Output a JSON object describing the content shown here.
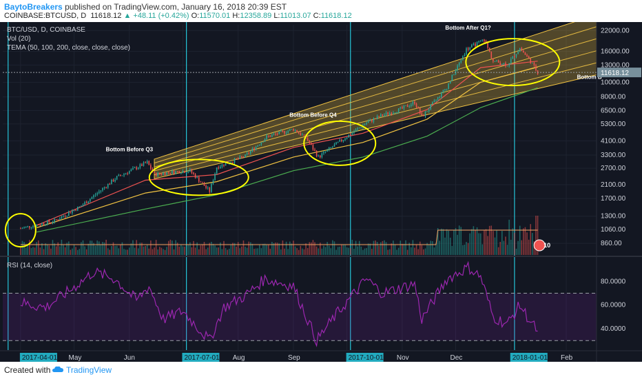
{
  "header": {
    "author": "BaytoBreakers",
    "published": "published on TradingView.com, January 16, 2018 20:39 EST",
    "symbol": "COINBASE:BTCUSD, D",
    "last": "11618.12",
    "change": "▲ +48.11 (+0.42%)",
    "o_label": "O:",
    "o_value": "11570.01",
    "h_label": "H:",
    "h_value": "12358.89",
    "l_label": "L:",
    "l_value": "11013.07",
    "c_label": "C:",
    "c_value": "11618.12"
  },
  "legend": {
    "line1": "BTC/USD, D, COINBASE",
    "line2": "Vol (20)",
    "line3": "TEMA (50, 100, 200, close, close, close)",
    "rsi": "RSI (14, close)"
  },
  "footer": {
    "created": "Created with",
    "brand": "TradingView"
  },
  "colors": {
    "background": "#131722",
    "up": "#26a69a",
    "down": "#ef5350",
    "channel_fill": "#f4c542",
    "annotation": "#ffff00",
    "tema50": "#ef5350",
    "tema100": "#f4c542",
    "tema200": "#4caf50",
    "rsi_line": "#9c27b0",
    "vline": "#26c6da",
    "price_badge": "#78909c"
  },
  "chart_data": {
    "type": "candlestick",
    "price_scale": "log",
    "ylim": [
      720,
      24000
    ],
    "y_ticks": [
      "22000.00",
      "16000.00",
      "13000.00",
      "10000.00",
      "8000.00",
      "6500.00",
      "5300.00",
      "4100.00",
      "3300.00",
      "2700.00",
      "2100.00",
      "1700.00",
      "1300.00",
      "1060.00",
      "860.00"
    ],
    "x_ticks": [
      "2017-04-01",
      "May",
      "Jun",
      "2017-07-01",
      "Aug",
      "Sep",
      "2017-10-01",
      "Nov",
      "Dec",
      "2018-01-01",
      "Feb"
    ],
    "x_range": [
      "2017-03-22",
      "2018-02-18"
    ],
    "current_price_label": "11618.12",
    "volume_badge": "10",
    "close_path": [
      {
        "date": "2017-04-01",
        "close": 1080
      },
      {
        "date": "2017-04-20",
        "close": 1210
      },
      {
        "date": "2017-05-05",
        "close": 1520
      },
      {
        "date": "2017-05-25",
        "close": 2350
      },
      {
        "date": "2017-06-11",
        "close": 2950
      },
      {
        "date": "2017-06-15",
        "close": 2450
      },
      {
        "date": "2017-06-25",
        "close": 2550
      },
      {
        "date": "2017-07-05",
        "close": 2600
      },
      {
        "date": "2017-07-16",
        "close": 1900
      },
      {
        "date": "2017-07-20",
        "close": 2750
      },
      {
        "date": "2017-08-05",
        "close": 3250
      },
      {
        "date": "2017-08-17",
        "close": 4350
      },
      {
        "date": "2017-09-01",
        "close": 4900
      },
      {
        "date": "2017-09-08",
        "close": 4300
      },
      {
        "date": "2017-09-15",
        "close": 3200
      },
      {
        "date": "2017-09-25",
        "close": 3900
      },
      {
        "date": "2017-10-12",
        "close": 5400
      },
      {
        "date": "2017-10-20",
        "close": 6000
      },
      {
        "date": "2017-11-01",
        "close": 6700
      },
      {
        "date": "2017-11-08",
        "close": 7400
      },
      {
        "date": "2017-11-12",
        "close": 5900
      },
      {
        "date": "2017-11-26",
        "close": 9300
      },
      {
        "date": "2017-12-07",
        "close": 16500
      },
      {
        "date": "2017-12-17",
        "close": 19200
      },
      {
        "date": "2017-12-22",
        "close": 13800
      },
      {
        "date": "2017-12-30",
        "close": 13100
      },
      {
        "date": "2018-01-06",
        "close": 16800
      },
      {
        "date": "2018-01-12",
        "close": 13800
      },
      {
        "date": "2018-01-16",
        "close": 11618
      }
    ],
    "tema": [
      {
        "name": "TEMA 50",
        "points": [
          {
            "date": "2017-04-10",
            "value": 1130
          },
          {
            "date": "2017-06-10",
            "value": 2250
          },
          {
            "date": "2017-07-20",
            "value": 2450
          },
          {
            "date": "2017-09-01",
            "value": 3700
          },
          {
            "date": "2017-10-10",
            "value": 4600
          },
          {
            "date": "2017-11-15",
            "value": 6600
          },
          {
            "date": "2017-12-15",
            "value": 12500
          },
          {
            "date": "2018-01-16",
            "value": 13800
          }
        ]
      },
      {
        "name": "TEMA 100",
        "points": [
          {
            "date": "2017-04-10",
            "value": 1090
          },
          {
            "date": "2017-06-10",
            "value": 1850
          },
          {
            "date": "2017-07-20",
            "value": 2200
          },
          {
            "date": "2017-09-01",
            "value": 3200
          },
          {
            "date": "2017-10-10",
            "value": 4000
          },
          {
            "date": "2017-11-15",
            "value": 5700
          },
          {
            "date": "2017-12-15",
            "value": 10000
          },
          {
            "date": "2018-01-16",
            "value": 12600
          }
        ]
      },
      {
        "name": "TEMA 200",
        "points": [
          {
            "date": "2017-04-10",
            "value": 1020
          },
          {
            "date": "2017-06-10",
            "value": 1450
          },
          {
            "date": "2017-07-20",
            "value": 1800
          },
          {
            "date": "2017-09-01",
            "value": 2600
          },
          {
            "date": "2017-10-10",
            "value": 3200
          },
          {
            "date": "2017-11-15",
            "value": 4400
          },
          {
            "date": "2017-12-15",
            "value": 6800
          },
          {
            "date": "2018-01-16",
            "value": 9200
          }
        ]
      }
    ],
    "channel": {
      "start_date": "2017-06-15",
      "end_date": "2018-02-18",
      "start_lower": 2300,
      "start_upper": 3100,
      "end_lower": 11200,
      "end_upper": 28000,
      "inner_lines": 4
    },
    "annotations": [
      {
        "text": "Bottom Before Q3",
        "date": "2017-06-01",
        "price": 3500
      },
      {
        "text": "Bottom Before Q4",
        "date": "2017-09-12",
        "price": 5900
      },
      {
        "text": "Bottom After Q1?",
        "date": "2017-12-08",
        "price": 22300
      },
      {
        "text": "Bottom B",
        "date": "2018-02-14",
        "price": 10500
      }
    ],
    "ellipses": [
      {
        "date": "2017-04-01",
        "price": 1050,
        "rx": 22,
        "ry": 24
      },
      {
        "date": "2017-07-10",
        "price": 2350,
        "rx": 72,
        "ry": 26
      },
      {
        "date": "2017-09-27",
        "price": 3950,
        "rx": 52,
        "ry": 32
      },
      {
        "date": "2018-01-02",
        "price": 13600,
        "rx": 68,
        "ry": 34
      }
    ],
    "vertical_lines": [
      "2017-03-25",
      "2017-07-03",
      "2017-10-03",
      "2018-01-03"
    ],
    "volume": {
      "max_relative": 1.0
    },
    "rsi": {
      "name": "RSI (14, close)",
      "ylim": [
        22,
        100
      ],
      "y_ticks": [
        "80.0000",
        "60.0000",
        "40.0000"
      ],
      "bands": [
        70,
        30
      ],
      "points": [
        {
          "date": "2017-04-01",
          "value": 62
        },
        {
          "date": "2017-04-15",
          "value": 58
        },
        {
          "date": "2017-04-30",
          "value": 74
        },
        {
          "date": "2017-05-12",
          "value": 88
        },
        {
          "date": "2017-05-24",
          "value": 82
        },
        {
          "date": "2017-06-05",
          "value": 64
        },
        {
          "date": "2017-06-12",
          "value": 76
        },
        {
          "date": "2017-06-20",
          "value": 48
        },
        {
          "date": "2017-07-01",
          "value": 55
        },
        {
          "date": "2017-07-16",
          "value": 30
        },
        {
          "date": "2017-07-24",
          "value": 58
        },
        {
          "date": "2017-08-05",
          "value": 68
        },
        {
          "date": "2017-08-16",
          "value": 82
        },
        {
          "date": "2017-09-01",
          "value": 76
        },
        {
          "date": "2017-09-14",
          "value": 30
        },
        {
          "date": "2017-09-25",
          "value": 52
        },
        {
          "date": "2017-10-12",
          "value": 82
        },
        {
          "date": "2017-10-21",
          "value": 70
        },
        {
          "date": "2017-11-08",
          "value": 78
        },
        {
          "date": "2017-11-12",
          "value": 48
        },
        {
          "date": "2017-11-26",
          "value": 82
        },
        {
          "date": "2017-12-08",
          "value": 92
        },
        {
          "date": "2017-12-15",
          "value": 84
        },
        {
          "date": "2017-12-22",
          "value": 50
        },
        {
          "date": "2017-12-30",
          "value": 44
        },
        {
          "date": "2018-01-06",
          "value": 60
        },
        {
          "date": "2018-01-12",
          "value": 46
        },
        {
          "date": "2018-01-16",
          "value": 38
        }
      ]
    }
  }
}
